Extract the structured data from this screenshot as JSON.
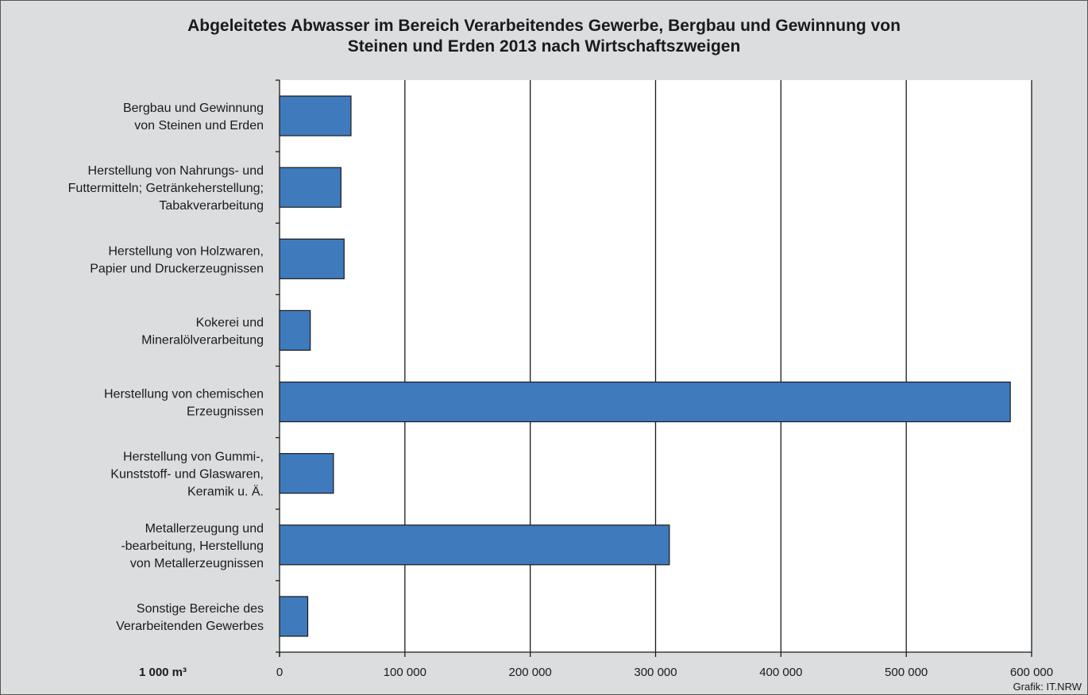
{
  "chart_data": {
    "type": "bar",
    "orientation": "horizontal",
    "title_lines": [
      "Abgeleitetes Abwasser im Bereich Verarbeitendes Gewerbe, Bergbau und Gewinnung von",
      "Steinen und Erden 2013 nach Wirtschaftszweigen"
    ],
    "unit_label": "1 000 m³",
    "categories": [
      [
        "Bergbau und Gewinnung",
        "von Steinen und Erden"
      ],
      [
        "Herstellung von Nahrungs- und",
        "Futtermitteln; Getränkeherstellung;",
        "Tabakverarbeitung"
      ],
      [
        "Herstellung von Holzwaren,",
        "Papier und Druckerzeugnissen"
      ],
      [
        "Kokerei und",
        "Mineralölverarbeitung"
      ],
      [
        "Herstellung von chemischen",
        "Erzeugnissen"
      ],
      [
        "Herstellung von Gummi-,",
        "Kunststoff- und Glaswaren,",
        "Keramik  u. Ä."
      ],
      [
        "Metallerzeugung und",
        "-bearbeitung, Herstellung",
        "von Metallerzeugnissen"
      ],
      [
        "Sonstige Bereiche des",
        "Verarbeitenden Gewerbes"
      ]
    ],
    "values": [
      57000,
      49000,
      51500,
      24500,
      583000,
      43000,
      311000,
      22500
    ],
    "xlim": [
      0,
      600000
    ],
    "xticks": [
      0,
      100000,
      200000,
      300000,
      400000,
      500000,
      600000
    ],
    "xtick_labels": [
      "0",
      "100 000",
      "200 000",
      "300 000",
      "400 000",
      "500 000",
      "600 000"
    ],
    "grid": "vertical",
    "bar_color": "#3f7abd",
    "legend": "none"
  },
  "footer": {
    "credit": "Grafik: IT.NRW"
  },
  "colors": {
    "background": "#dcdddf",
    "plot_background": "#ffffff",
    "bar": "#3f7abd"
  }
}
